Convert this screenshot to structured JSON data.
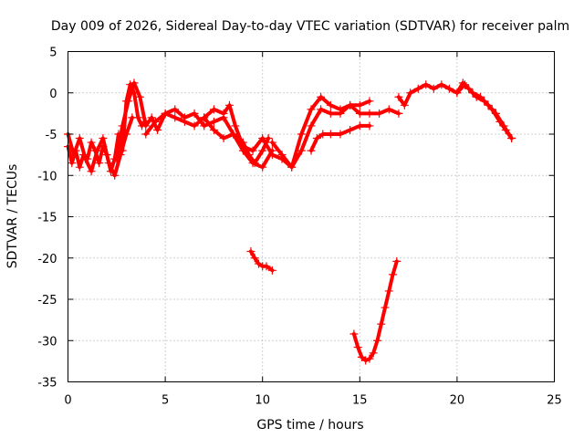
{
  "chart_data": {
    "type": "scatter",
    "title": "Day 009 of 2026, Sidereal Day-to-day VTEC variation (SDTVAR) for receiver palm",
    "xlabel": "GPS time / hours",
    "ylabel": "SDTVAR / TECUs",
    "xlim": [
      0,
      25
    ],
    "ylim": [
      -35,
      5
    ],
    "xticks": [
      0,
      5,
      10,
      15,
      20,
      25
    ],
    "yticks": [
      5,
      0,
      -5,
      -10,
      -15,
      -20,
      -25,
      -30,
      -35
    ],
    "grid": true,
    "legend": "none",
    "color": "#ff0000",
    "series": [
      {
        "name": "seg1",
        "x": [
          0.0,
          0.2,
          0.4,
          0.6,
          0.8,
          1.0,
          1.2,
          1.4,
          1.6,
          1.8,
          2.0,
          2.2,
          2.4,
          2.6,
          2.8,
          3.0,
          3.2,
          3.4,
          3.6,
          3.8,
          4.0
        ],
        "y": [
          -6.5,
          -8.5,
          -7.0,
          -9.0,
          -7.5,
          -8.0,
          -6.0,
          -7.0,
          -8.5,
          -6.5,
          -7.5,
          -9.5,
          -8.0,
          -5.0,
          -7.0,
          -1.0,
          1.0,
          0.0,
          -3.0,
          -4.0,
          -3.5
        ]
      },
      {
        "name": "seg2",
        "x": [
          0.0,
          0.3,
          0.6,
          0.9,
          1.2,
          1.5,
          1.8,
          2.1,
          2.4,
          2.7,
          3.0,
          3.3
        ],
        "y": [
          -5.0,
          -7.5,
          -5.5,
          -8.0,
          -9.5,
          -7.0,
          -5.5,
          -8.5,
          -10.0,
          -7.5,
          -5.0,
          -3.0
        ]
      },
      {
        "name": "seg3",
        "x": [
          2.5,
          2.8,
          3.1,
          3.4,
          3.7,
          4.0,
          4.3,
          4.6,
          5.0,
          5.5,
          6.0,
          6.5,
          7.0,
          7.5,
          8.0,
          8.5,
          9.0,
          9.3,
          9.6,
          10.0,
          10.3
        ],
        "y": [
          -8.0,
          -4.0,
          -1.0,
          1.2,
          -0.5,
          -4.0,
          -3.0,
          -4.5,
          -2.5,
          -2.0,
          -3.0,
          -2.5,
          -4.0,
          -3.5,
          -3.0,
          -5.0,
          -6.0,
          -7.5,
          -8.5,
          -7.0,
          -5.5
        ]
      },
      {
        "name": "seg4",
        "x": [
          4.0,
          4.5,
          5.0,
          5.5,
          6.0,
          6.5,
          7.0,
          7.5,
          8.0,
          8.5,
          9.0,
          9.5,
          10.0,
          10.5
        ],
        "y": [
          -5.0,
          -3.5,
          -2.5,
          -3.0,
          -3.5,
          -4.0,
          -3.0,
          -4.5,
          -5.5,
          -5.0,
          -7.0,
          -8.5,
          -9.0,
          -7.0
        ]
      },
      {
        "name": "seg5",
        "x": [
          7.0,
          7.5,
          8.0,
          8.3,
          8.6,
          9.0,
          9.5,
          10.0,
          10.5,
          11.0,
          11.5,
          12.0,
          12.5,
          13.0,
          13.5,
          14.0,
          14.5,
          15.0,
          15.5,
          16.0,
          16.5,
          17.0
        ],
        "y": [
          -3.0,
          -2.0,
          -2.5,
          -1.5,
          -4.0,
          -6.5,
          -7.0,
          -5.5,
          -7.5,
          -8.0,
          -9.0,
          -7.0,
          -4.0,
          -2.0,
          -2.5,
          -2.5,
          -1.5,
          -2.5,
          -2.5,
          -2.5,
          -2.0,
          -2.5
        ]
      },
      {
        "name": "seg6",
        "x": [
          10.5,
          11.0,
          11.5,
          12.0,
          12.5,
          13.0,
          13.5,
          14.0,
          14.5,
          15.0,
          15.5
        ],
        "y": [
          -6.0,
          -7.5,
          -9.0,
          -5.0,
          -2.0,
          -0.5,
          -1.5,
          -2.0,
          -1.5,
          -1.5,
          -1.0
        ]
      },
      {
        "name": "seg7",
        "x": [
          12.5,
          12.8,
          13.1,
          13.5,
          14.0,
          14.5,
          15.0,
          15.5
        ],
        "y": [
          -7.0,
          -5.5,
          -5.0,
          -5.0,
          -5.0,
          -4.5,
          -4.0,
          -4.0
        ]
      },
      {
        "name": "seg8",
        "x": [
          17.0,
          17.3,
          17.6,
          18.0,
          18.4,
          18.8,
          19.2,
          19.6,
          20.0,
          20.3,
          20.6,
          21.0,
          21.4,
          21.8,
          22.2,
          22.5,
          22.8
        ],
        "y": [
          -0.5,
          -1.5,
          0.0,
          0.5,
          1.0,
          0.5,
          1.0,
          0.5,
          0.0,
          1.2,
          0.5,
          -0.5,
          -1.0,
          -2.0,
          -3.5,
          -4.5,
          -5.5
        ]
      },
      {
        "name": "seg9",
        "x": [
          20.0,
          20.4,
          20.8,
          21.2,
          21.6,
          22.0,
          22.4,
          22.8
        ],
        "y": [
          0.0,
          1.0,
          0.0,
          -0.5,
          -1.5,
          -2.5,
          -4.0,
          -5.5
        ]
      },
      {
        "name": "seg10",
        "x": [
          9.4,
          9.6,
          9.8,
          10.0,
          10.2,
          10.5
        ],
        "y": [
          -19.2,
          -20.0,
          -20.7,
          -21.0,
          -21.0,
          -21.5
        ]
      },
      {
        "name": "seg11",
        "x": [
          14.7,
          14.9,
          15.1,
          15.3,
          15.5,
          15.7,
          15.9,
          16.1,
          16.3,
          16.5,
          16.7,
          16.9
        ],
        "y": [
          -29.2,
          -30.8,
          -32.0,
          -32.4,
          -32.2,
          -31.5,
          -30.0,
          -28.0,
          -26.0,
          -24.0,
          -22.0,
          -20.4
        ]
      }
    ]
  }
}
